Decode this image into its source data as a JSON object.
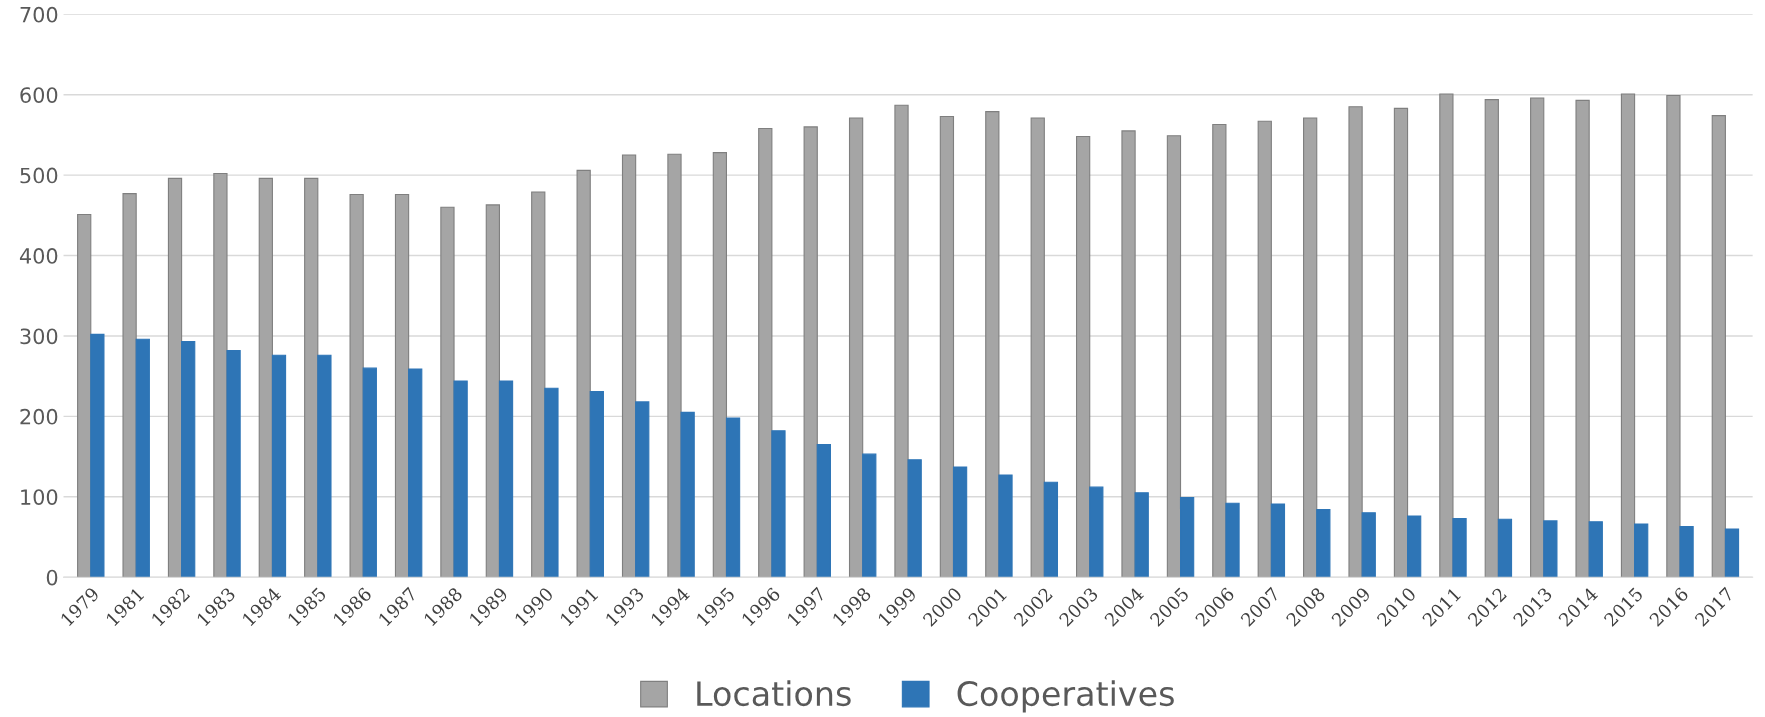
{
  "chart_data": {
    "type": "bar",
    "categories": [
      "1979",
      "1981",
      "1982",
      "1983",
      "1984",
      "1985",
      "1986",
      "1987",
      "1988",
      "1989",
      "1990",
      "1991",
      "1993",
      "1994",
      "1995",
      "1996",
      "1997",
      "1998",
      "1999",
      "2000",
      "2001",
      "2002",
      "2003",
      "2004",
      "2005",
      "2006",
      "2007",
      "2008",
      "2009",
      "2010",
      "2011",
      "2012",
      "2013",
      "2014",
      "2015",
      "2016",
      "2017"
    ],
    "series": [
      {
        "name": "Locations",
        "color": "#a5a5a5",
        "values": [
          451,
          477,
          496,
          502,
          496,
          496,
          476,
          476,
          460,
          463,
          479,
          506,
          525,
          526,
          528,
          558,
          560,
          571,
          587,
          573,
          579,
          571,
          548,
          555,
          549,
          563,
          567,
          571,
          585,
          583,
          601,
          594,
          596,
          593,
          601,
          599,
          574
        ]
      },
      {
        "name": "Cooperatives",
        "color": "#2e75b6",
        "values": [
          302,
          296,
          293,
          282,
          276,
          276,
          260,
          259,
          244,
          244,
          235,
          231,
          218,
          205,
          198,
          182,
          165,
          153,
          146,
          137,
          127,
          118,
          112,
          105,
          99,
          92,
          91,
          84,
          80,
          76,
          73,
          72,
          70,
          69,
          66,
          63,
          60
        ]
      }
    ],
    "ylim": [
      0,
      700
    ],
    "yticks": [
      0,
      100,
      200,
      300,
      400,
      500,
      600,
      700
    ],
    "grid": "y",
    "legend": "bottom"
  }
}
